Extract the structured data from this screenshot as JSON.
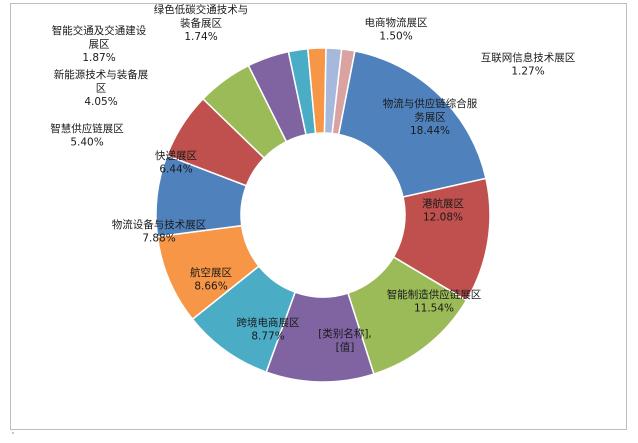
{
  "chart_data": {
    "type": "pie",
    "title": "",
    "hole": true,
    "slices": [
      {
        "label": "物流与供应链综合服务展区",
        "display": [
          "物流与供应链综合服",
          "务展区",
          "18.44%"
        ],
        "value": 18.44,
        "color": "#4f81bd"
      },
      {
        "label": "港航展区",
        "display": [
          "港航展区",
          "12.08%"
        ],
        "value": 12.08,
        "color": "#c0504d"
      },
      {
        "label": "智能制造供应链展区",
        "display": [
          "智能制造供应链展区",
          "11.54%"
        ],
        "value": 11.54,
        "color": "#9bbb59"
      },
      {
        "label": "[类别名称]",
        "display": [
          "[类别名称],",
          "[值]"
        ],
        "value": 10.45,
        "color": "#8064a2"
      },
      {
        "label": "跨境电商展区",
        "display": [
          "跨境电商展区",
          "8.77%"
        ],
        "value": 8.77,
        "color": "#4bacc6"
      },
      {
        "label": "航空展区",
        "display": [
          "航空展区",
          "8.66%"
        ],
        "value": 8.66,
        "color": "#f79646"
      },
      {
        "label": "物流设备与技术展区",
        "display": [
          "物流设备与技术展区",
          "7.88%"
        ],
        "value": 7.88,
        "color": "#4f81bd"
      },
      {
        "label": "快递展区",
        "display": [
          "快递展区",
          "6.44%"
        ],
        "value": 6.44,
        "color": "#c0504d"
      },
      {
        "label": "智慧供应链展区",
        "display": [
          "智慧供应链展区",
          "5.40%"
        ],
        "value": 5.4,
        "color": "#9bbb59"
      },
      {
        "label": "新能源技术与装备展区",
        "display": [
          "新能源技术与装备展",
          "区",
          "4.05%"
        ],
        "value": 4.05,
        "color": "#8064a2"
      },
      {
        "label": "智能交通及交通建设展区",
        "display": [
          "智能交通及交通建设",
          "展区",
          "1.87%"
        ],
        "value": 1.87,
        "color": "#4bacc6"
      },
      {
        "label": "绿色低碳交通技术与装备展区",
        "display": [
          "绿色低碳交通技术与",
          "装备展区",
          "1.74%"
        ],
        "value": 1.74,
        "color": "#f79646"
      },
      {
        "label": "电商物流展区",
        "display": [
          "电商物流展区",
          "1.50%"
        ],
        "value": 1.5,
        "color": "#a6b9dc"
      },
      {
        "label": "互联网信息技术展区",
        "display": [
          "互联网信息技术展区",
          "1.27%"
        ],
        "value": 1.27,
        "color": "#d9a3a2"
      }
    ]
  },
  "corner_mark": "'"
}
